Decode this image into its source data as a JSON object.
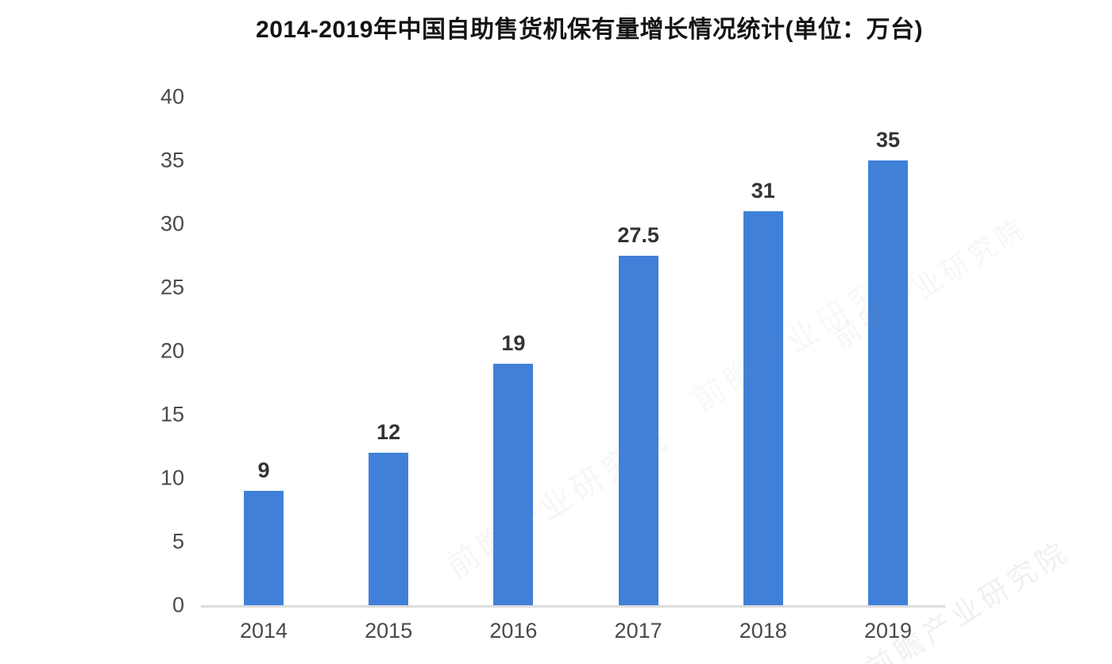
{
  "title": "2014-2019年中国自助售货机保有量增长情况统计(单位：万台)",
  "chart_data": {
    "type": "bar",
    "title": "2014-2019年中国自助售货机保有量增长情况统计(单位：万台)",
    "categories": [
      "2014",
      "2015",
      "2016",
      "2017",
      "2018",
      "2019"
    ],
    "values": [
      9,
      12,
      19,
      27.5,
      31,
      35
    ],
    "value_labels": [
      "9",
      "12",
      "19",
      "27.5",
      "31",
      "35"
    ],
    "xlabel": "",
    "ylabel": "",
    "unit": "万台",
    "ylim": [
      0,
      40
    ],
    "ytick_step": 5,
    "yticks": [
      0,
      5,
      10,
      15,
      20,
      25,
      30,
      35,
      40
    ],
    "grid": false,
    "legend": false,
    "bar_color": "#4080d8",
    "axis_line_color": "#dcdcdc",
    "tick_label_color": "#4a4a4a",
    "value_label_color": "#333333",
    "title_color": "#141414",
    "background_color": "#ffffff"
  },
  "watermark": {
    "text": "前瞻产业研究院"
  }
}
